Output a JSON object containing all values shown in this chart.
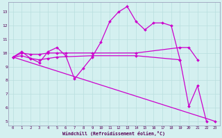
{
  "xlabel": "Windchill (Refroidissement éolien,°C)",
  "background_color": "#d4f0f0",
  "grid_color": "#b8dede",
  "line_color": "#cc00cc",
  "xlim": [
    -0.5,
    23.5
  ],
  "ylim": [
    4.7,
    13.7
  ],
  "yticks": [
    5,
    6,
    7,
    8,
    9,
    10,
    11,
    12,
    13
  ],
  "xticks": [
    0,
    1,
    2,
    3,
    4,
    5,
    6,
    7,
    8,
    9,
    10,
    11,
    12,
    13,
    14,
    15,
    16,
    17,
    18,
    19,
    20,
    21,
    22,
    23
  ],
  "series": {
    "line1_zigzag": {
      "x": [
        0,
        1,
        2,
        3,
        4,
        5,
        6,
        7,
        8,
        9,
        10,
        11,
        12,
        13,
        14,
        15,
        16,
        17,
        18,
        19,
        20,
        21,
        22
      ],
      "y": [
        9.7,
        10.1,
        9.6,
        9.3,
        10.1,
        10.4,
        9.8,
        8.1,
        8.9,
        9.7,
        10.8,
        12.3,
        13.0,
        13.4,
        12.3,
        11.7,
        12.2,
        12.2,
        12.0,
        9.5,
        6.1,
        7.6,
        5.0
      ]
    },
    "line2_upper_flat": {
      "x": [
        0,
        1,
        2,
        3,
        4,
        5,
        6,
        9,
        14,
        19,
        20,
        21
      ],
      "y": [
        9.7,
        10.0,
        9.9,
        9.9,
        10.0,
        10.0,
        10.0,
        10.0,
        10.0,
        10.4,
        10.4,
        9.5
      ]
    },
    "line3_lower_flat": {
      "x": [
        0,
        1,
        2,
        3,
        4,
        5,
        9,
        14,
        19
      ],
      "y": [
        9.7,
        9.8,
        9.6,
        9.5,
        9.6,
        9.7,
        9.8,
        9.8,
        9.5
      ]
    },
    "line4_diagonal": {
      "x": [
        0,
        23
      ],
      "y": [
        9.7,
        5.0
      ]
    }
  }
}
